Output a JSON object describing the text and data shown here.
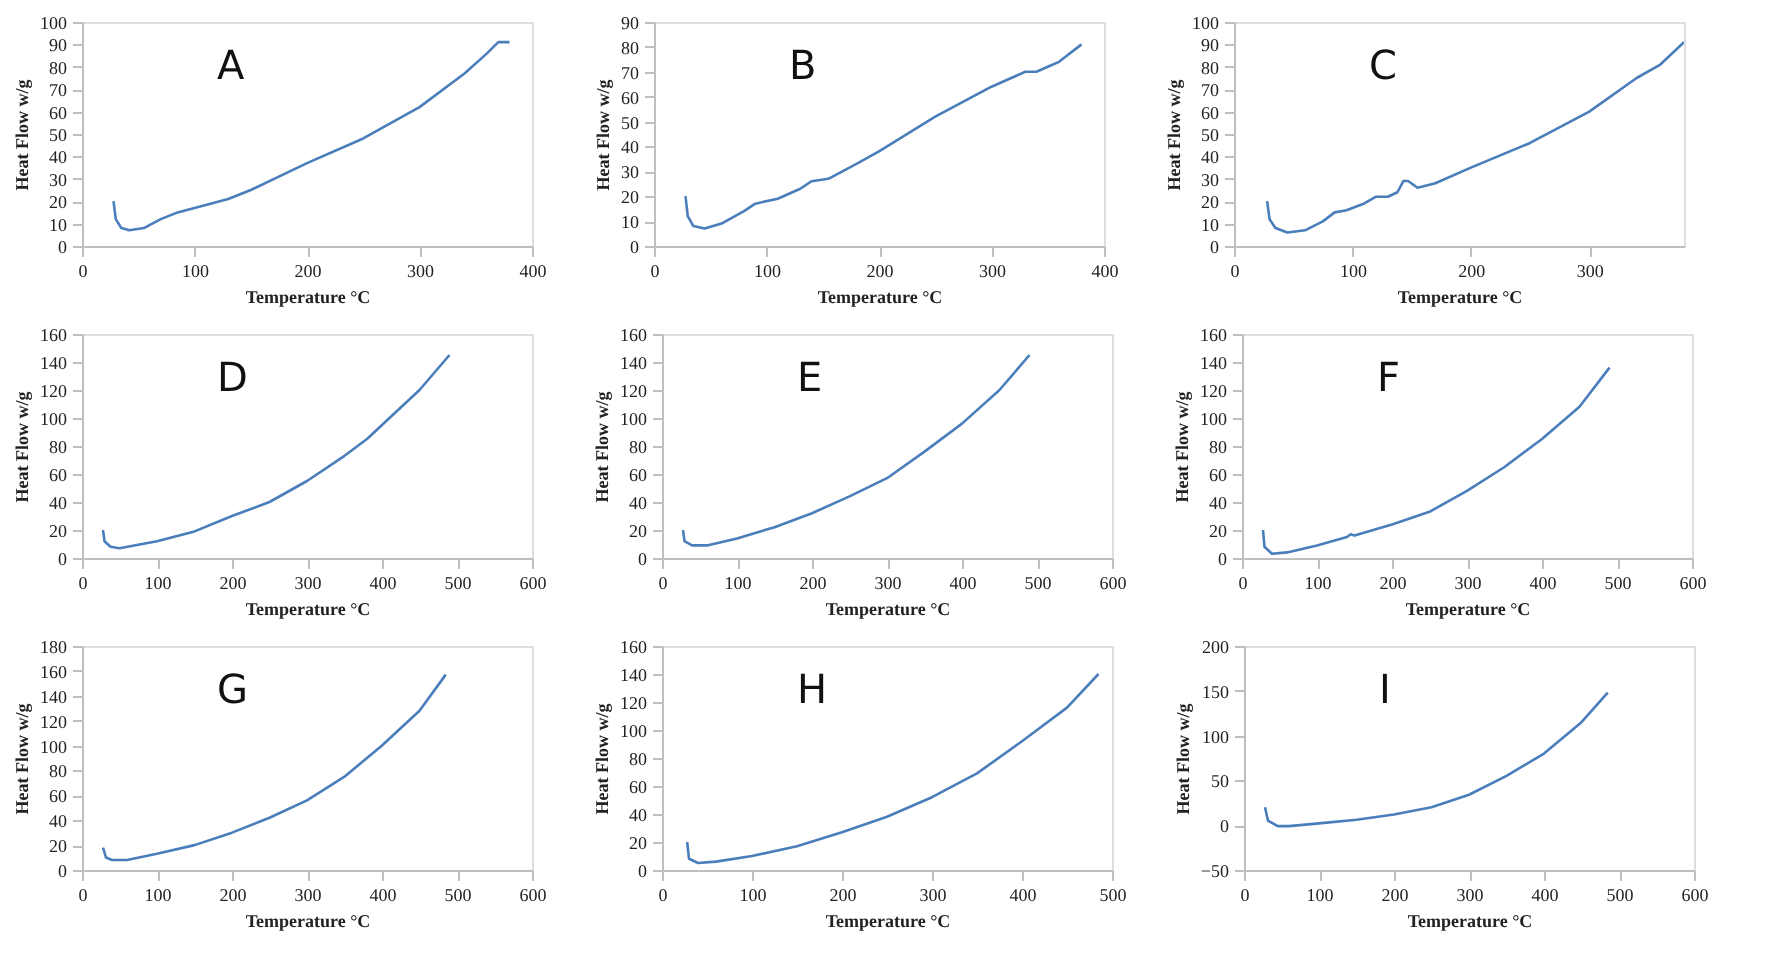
{
  "chart_data": [
    {
      "type": "line",
      "annotations": [
        "A"
      ],
      "xlabel": "Temperature °C",
      "ylabel": "Heat Flow  w/g",
      "xlim": [
        0,
        400
      ],
      "xticks": [
        0,
        100,
        200,
        300,
        400
      ],
      "ylim": [
        0,
        100
      ],
      "yticks": [
        0,
        10,
        20,
        30,
        40,
        50,
        60,
        70,
        80,
        90,
        100
      ],
      "grid": false,
      "series": [
        {
          "color": "#4a7ebb",
          "x": [
            28,
            30,
            35,
            42,
            55,
            70,
            85,
            100,
            130,
            150,
            175,
            200,
            250,
            300,
            340,
            360,
            370,
            380
          ],
          "values": [
            20,
            12,
            8,
            7,
            8,
            12,
            15,
            17,
            21,
            25,
            31,
            37,
            48,
            62,
            77,
            86,
            91,
            91
          ]
        }
      ]
    },
    {
      "type": "line",
      "annotations": [
        "B"
      ],
      "xlabel": "Temperature °C",
      "ylabel": "Heat Flow  w/g",
      "xlim": [
        0,
        400
      ],
      "xticks": [
        0,
        100,
        200,
        300,
        400
      ],
      "ylim": [
        0,
        90
      ],
      "yticks": [
        0,
        10,
        20,
        30,
        40,
        50,
        60,
        70,
        80,
        90
      ],
      "grid": false,
      "series": [
        {
          "color": "#4a7ebb",
          "x": [
            28,
            30,
            35,
            45,
            60,
            80,
            90,
            110,
            130,
            140,
            155,
            180,
            200,
            250,
            300,
            330,
            340,
            350,
            360,
            380
          ],
          "values": [
            20,
            12,
            8,
            7,
            9,
            14,
            17,
            19,
            23,
            26,
            27,
            33,
            38,
            52,
            64,
            70,
            70,
            72,
            74,
            81
          ]
        }
      ]
    },
    {
      "type": "line",
      "annotations": [
        "C"
      ],
      "xlabel": "Temperature °C",
      "ylabel": "Heat Flow  w/g",
      "xlim": [
        0,
        380
      ],
      "xticks": [
        0,
        100,
        200,
        300
      ],
      "ylim": [
        0,
        100
      ],
      "yticks": [
        0,
        10,
        20,
        30,
        40,
        50,
        60,
        70,
        80,
        90,
        100
      ],
      "grid": false,
      "series": [
        {
          "color": "#4a7ebb",
          "x": [
            28,
            30,
            35,
            45,
            60,
            75,
            85,
            95,
            110,
            120,
            130,
            138,
            143,
            147,
            155,
            170,
            200,
            250,
            300,
            340,
            360,
            380
          ],
          "values": [
            20,
            12,
            8,
            6,
            7,
            11,
            15,
            16,
            19,
            22,
            22,
            24,
            29,
            29,
            26,
            28,
            35,
            46,
            60,
            75,
            81,
            91
          ]
        }
      ]
    },
    {
      "type": "line",
      "annotations": [
        "D"
      ],
      "xlabel": "Temperature °C",
      "ylabel": "Heat Flow  w/g",
      "xlim": [
        0,
        600
      ],
      "xticks": [
        0,
        100,
        200,
        300,
        400,
        500,
        600
      ],
      "ylim": [
        0,
        160
      ],
      "yticks": [
        0,
        20,
        40,
        60,
        80,
        100,
        120,
        140,
        160
      ],
      "grid": false,
      "series": [
        {
          "color": "#4a7ebb",
          "x": [
            28,
            30,
            38,
            50,
            100,
            150,
            200,
            250,
            300,
            350,
            380,
            400,
            450,
            490
          ],
          "values": [
            20,
            12,
            8,
            7,
            12,
            19,
            30,
            40,
            55,
            73,
            85,
            95,
            120,
            145
          ]
        }
      ]
    },
    {
      "type": "line",
      "annotations": [
        "E"
      ],
      "xlabel": "Temperature °C",
      "ylabel": "Heat Flow  w/g",
      "xlim": [
        0,
        600
      ],
      "xticks": [
        0,
        100,
        200,
        300,
        400,
        500,
        600
      ],
      "ylim": [
        0,
        160
      ],
      "yticks": [
        0,
        20,
        40,
        60,
        80,
        100,
        120,
        140,
        160
      ],
      "grid": false,
      "series": [
        {
          "color": "#4a7ebb",
          "x": [
            28,
            30,
            40,
            60,
            100,
            150,
            200,
            250,
            300,
            350,
            400,
            450,
            490
          ],
          "values": [
            20,
            12,
            9,
            9,
            14,
            22,
            32,
            44,
            57,
            76,
            96,
            120,
            145
          ]
        }
      ]
    },
    {
      "type": "line",
      "annotations": [
        "F"
      ],
      "xlabel": "Temperature °C",
      "ylabel": "Heat Flow  w/g",
      "xlim": [
        0,
        600
      ],
      "xticks": [
        0,
        100,
        200,
        300,
        400,
        500,
        600
      ],
      "ylim": [
        0,
        160
      ],
      "yticks": [
        0,
        20,
        40,
        60,
        80,
        100,
        120,
        140,
        160
      ],
      "grid": false,
      "series": [
        {
          "color": "#4a7ebb",
          "x": [
            28,
            30,
            40,
            60,
            100,
            140,
            145,
            150,
            200,
            250,
            300,
            350,
            400,
            450,
            490
          ],
          "values": [
            20,
            8,
            3,
            4,
            9,
            15,
            17,
            16,
            24,
            33,
            48,
            65,
            85,
            108,
            136
          ]
        }
      ]
    },
    {
      "type": "line",
      "annotations": [
        "G"
      ],
      "xlabel": "Temperature °C",
      "ylabel": "Heat Flow  w/g",
      "xlim": [
        0,
        600
      ],
      "xticks": [
        0,
        100,
        200,
        300,
        400,
        500,
        600
      ],
      "ylim": [
        0,
        180
      ],
      "yticks": [
        0,
        20,
        40,
        60,
        80,
        100,
        120,
        140,
        160,
        180
      ],
      "grid": false,
      "series": [
        {
          "color": "#4a7ebb",
          "x": [
            28,
            32,
            40,
            60,
            100,
            150,
            200,
            250,
            300,
            350,
            400,
            450,
            485
          ],
          "values": [
            18,
            10,
            8,
            8,
            13,
            20,
            30,
            42,
            56,
            75,
            100,
            128,
            157
          ]
        }
      ]
    },
    {
      "type": "line",
      "annotations": [
        "H"
      ],
      "xlabel": "Temperature °C",
      "ylabel": "Heat Flow  w/g",
      "xlim": [
        0,
        500
      ],
      "xticks": [
        0,
        100,
        200,
        300,
        400,
        500
      ],
      "ylim": [
        0,
        160
      ],
      "yticks": [
        0,
        20,
        40,
        60,
        80,
        100,
        120,
        140,
        160
      ],
      "grid": false,
      "series": [
        {
          "color": "#4a7ebb",
          "x": [
            28,
            30,
            40,
            60,
            100,
            150,
            200,
            250,
            300,
            350,
            400,
            450,
            485
          ],
          "values": [
            20,
            8,
            5,
            6,
            10,
            17,
            27,
            38,
            52,
            69,
            92,
            116,
            140
          ]
        }
      ]
    },
    {
      "type": "line",
      "annotations": [
        "I"
      ],
      "xlabel": "Temperature °C",
      "ylabel": "Heat Flow  w/g",
      "xlim": [
        0,
        600
      ],
      "xticks": [
        0,
        100,
        200,
        300,
        400,
        500,
        600
      ],
      "ylim": [
        -50,
        200
      ],
      "yticks": [
        -50,
        0,
        50,
        100,
        150,
        200
      ],
      "grid": false,
      "series": [
        {
          "color": "#4a7ebb",
          "x": [
            28,
            32,
            45,
            60,
            100,
            150,
            200,
            250,
            300,
            350,
            400,
            450,
            485
          ],
          "values": [
            20,
            5,
            -1,
            -1,
            2,
            6,
            12,
            20,
            34,
            55,
            80,
            115,
            148
          ]
        }
      ]
    }
  ]
}
